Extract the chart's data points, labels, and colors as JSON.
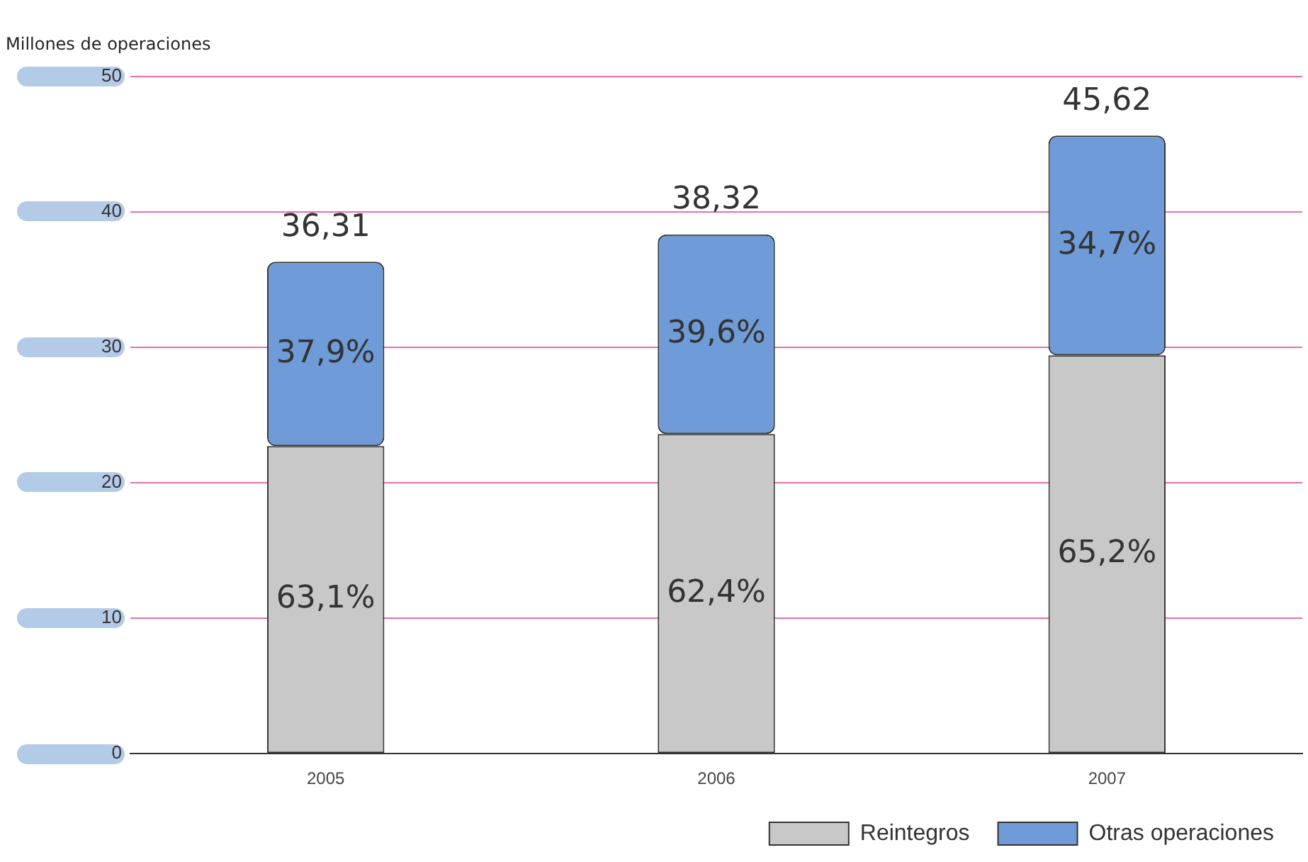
{
  "chart_data": {
    "type": "bar",
    "stacked": true,
    "ylabel": "Millones de operaciones",
    "categories": [
      "2005",
      "2006",
      "2007"
    ],
    "series": [
      {
        "name": "Reintegros",
        "color": "#c8c8c8",
        "values": [
          22.7,
          23.6,
          29.4
        ]
      },
      {
        "name": "Otras operaciones",
        "color": "#6f9bd8",
        "values": [
          13.61,
          14.72,
          16.22
        ]
      }
    ],
    "totals": [
      "36,31",
      "38,32",
      "45,62"
    ],
    "annotations": [
      "63,1%",
      "62,4%",
      "65,2%",
      "37,9%",
      "39,6%",
      "34,7%"
    ],
    "ylim": [
      0,
      50
    ],
    "yticks": [
      0,
      10,
      20,
      30,
      40,
      50
    ],
    "grid": "y",
    "legend": "bottom right"
  }
}
